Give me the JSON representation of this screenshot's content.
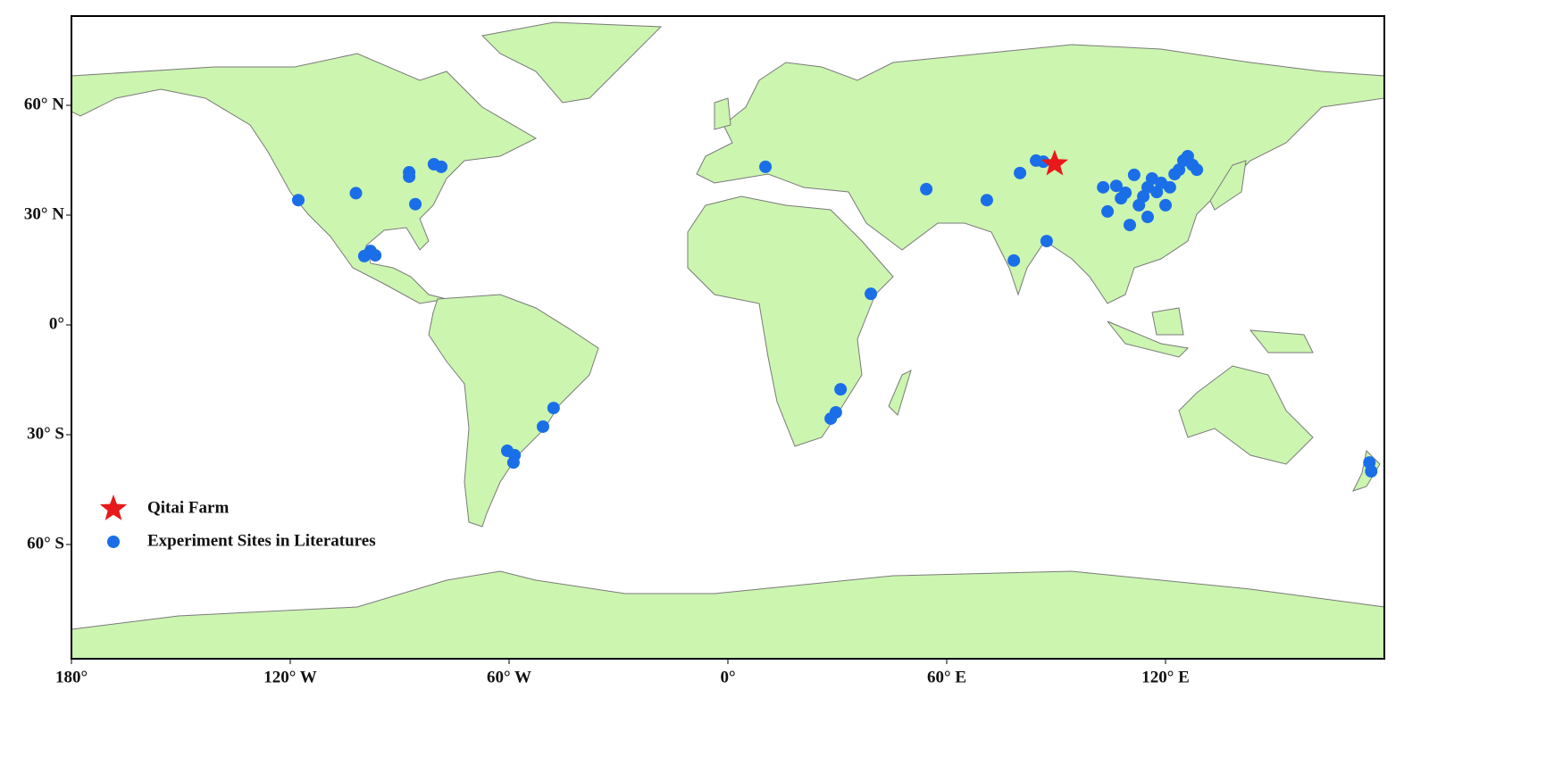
{
  "chart_data": {
    "type": "map",
    "xlim": [
      -180,
      180
    ],
    "ylim": [
      -90,
      84
    ],
    "xticks": [
      {
        "value": -180,
        "label": "180°"
      },
      {
        "value": -120,
        "label": "120° W"
      },
      {
        "value": -60,
        "label": "60° W"
      },
      {
        "value": 0,
        "label": "0°"
      },
      {
        "value": 60,
        "label": "60° E"
      },
      {
        "value": 120,
        "label": "120° E"
      }
    ],
    "yticks": [
      {
        "value": 60,
        "label": "60° N"
      },
      {
        "value": 30,
        "label": "30° N"
      },
      {
        "value": 0,
        "label": "0°"
      },
      {
        "value": -30,
        "label": "30° S"
      },
      {
        "value": -60,
        "label": "60° S"
      }
    ],
    "legend": "lower left",
    "series": [
      {
        "name": "Qitai Farm",
        "color": "#e8191a",
        "marker": "star",
        "x": [
          89.6
        ],
        "y": [
          44.0
        ]
      },
      {
        "name": "Experiment Sites in Literatures",
        "color": "#1a6fe8",
        "marker": "circle",
        "x": [
          -117.8,
          -102,
          -87.4,
          -87.4,
          -80.6,
          -78.6,
          -85.7,
          -99.7,
          -98,
          -96.7,
          -60.5,
          -58.5,
          -58.8,
          -50.7,
          -47.8,
          10.3,
          39.2,
          30.9,
          29.6,
          28.2,
          54.4,
          71,
          80.1,
          78.4,
          87.4,
          84.5,
          86.5,
          102.9,
          104.1,
          106.5,
          107.8,
          109,
          111.4,
          110.2,
          113.9,
          115.1,
          116.3,
          117.6,
          118.8,
          121.2,
          115.1,
          120,
          112.7,
          123.7,
          124.9,
          126.1,
          127.4,
          128.6,
          122.5,
          175.9,
          176.4
        ],
        "y": [
          34.1,
          36,
          41.7,
          40.5,
          43.9,
          43.2,
          33,
          18.8,
          20.2,
          19,
          -34.4,
          -35.6,
          -37.6,
          -27.8,
          -22.7,
          43.2,
          8.5,
          -17.6,
          -23.9,
          -25.6,
          37.1,
          34.1,
          41.5,
          17.6,
          22.9,
          44.9,
          44.6,
          37.6,
          31,
          38,
          34.6,
          36.1,
          41,
          27.3,
          35.1,
          37.6,
          40,
          36.3,
          38.8,
          37.6,
          29.5,
          32.7,
          32.7,
          42.4,
          44.9,
          46.1,
          43.7,
          42.4,
          41.2,
          -37.6,
          -40
        ]
      }
    ]
  }
}
